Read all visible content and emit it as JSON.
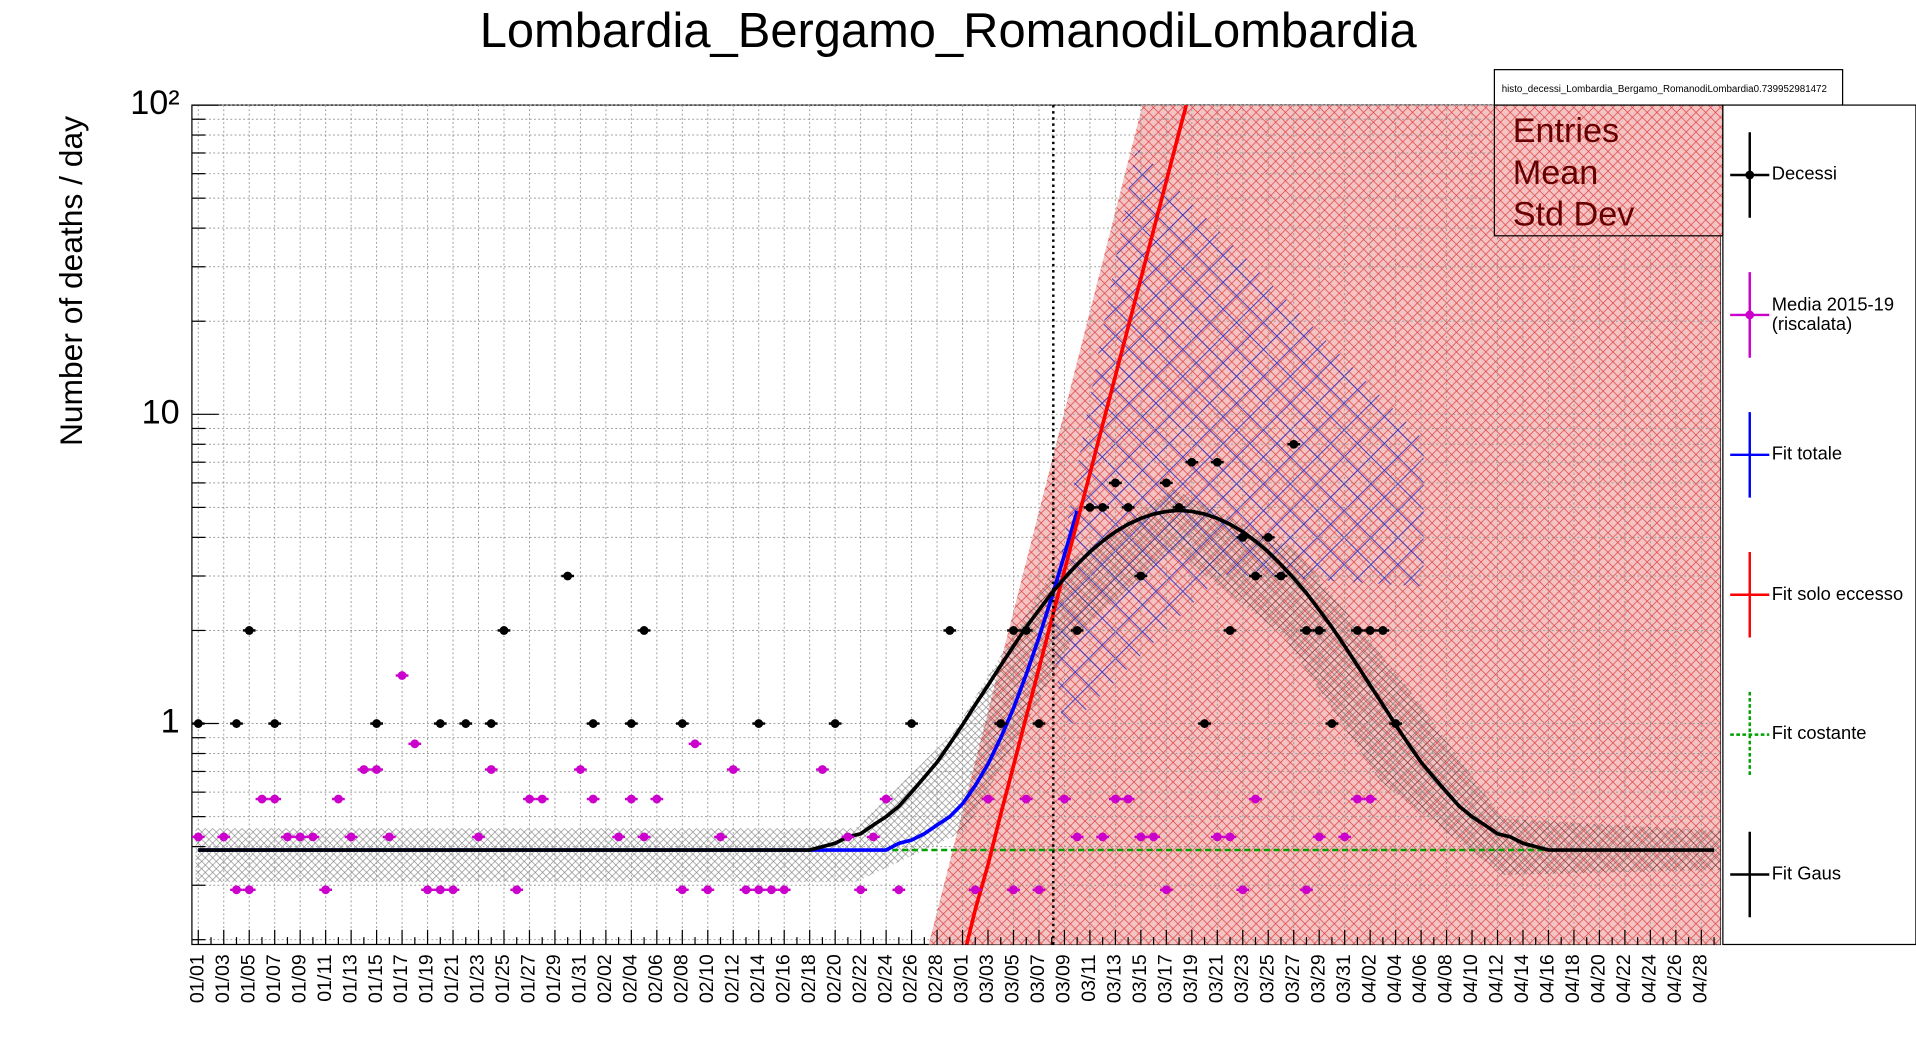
{
  "chart_data": {
    "type": "line",
    "title": "Lombardia_Bergamo_RomanodiLombardia",
    "y_label": "Number of deaths / day",
    "log_y": true,
    "grid": true,
    "ylim": [
      0.193,
      100
    ],
    "yticks": [
      1,
      10,
      {
        "value": 100,
        "label": "10²"
      }
    ],
    "minor_yticks": [
      0.2,
      0.3,
      0.4,
      0.5,
      0.6,
      0.7,
      0.8,
      0.9,
      2,
      3,
      4,
      5,
      6,
      7,
      8,
      9,
      20,
      30,
      40,
      50,
      60,
      70,
      80,
      90
    ],
    "stats_box": {
      "title": "histo_decessi_Lombardia_Bergamo_RomanodiLombardia0.739952981472",
      "rows": [
        "Entries",
        "Mean",
        "Std Dev"
      ]
    },
    "categories": [
      "01/01",
      null,
      "01/03",
      null,
      "01/05",
      null,
      "01/07",
      null,
      "01/09",
      null,
      "01/11",
      null,
      "01/13",
      null,
      "01/15",
      null,
      "01/17",
      null,
      "01/19",
      null,
      "01/21",
      null,
      "01/23",
      null,
      "01/25",
      null,
      "01/27",
      null,
      "01/29",
      null,
      "01/31",
      null,
      "02/02",
      null,
      "02/04",
      null,
      "02/06",
      null,
      "02/08",
      null,
      "02/10",
      null,
      "02/12",
      null,
      "02/14",
      null,
      "02/16",
      null,
      "02/18",
      null,
      "02/20",
      null,
      "02/22",
      null,
      "02/24",
      null,
      "02/26",
      null,
      "02/28",
      null,
      "03/01",
      null,
      "03/03",
      null,
      "03/05",
      null,
      "03/07",
      null,
      "03/09",
      null,
      "03/11",
      null,
      "03/13",
      null,
      "03/15",
      null,
      "03/17",
      null,
      "03/19",
      null,
      "03/21",
      null,
      "03/23",
      null,
      "03/25",
      null,
      "03/27",
      null,
      "03/29",
      null,
      "03/31",
      null,
      "04/02",
      null,
      "04/04",
      null,
      "04/06",
      null,
      "04/08",
      null,
      "04/10",
      null,
      "04/12",
      null,
      "04/14",
      null,
      "04/16",
      null,
      "04/18",
      null,
      "04/20",
      null,
      "04/22",
      null,
      "04/24",
      null,
      "04/26",
      null,
      "04/28",
      null
    ],
    "series": [
      {
        "name": "Decessi",
        "color": "#000000",
        "mark": "points",
        "values": [
          1,
          null,
          null,
          1,
          2,
          null,
          1,
          null,
          null,
          null,
          null,
          null,
          null,
          null,
          1,
          null,
          null,
          null,
          null,
          1,
          null,
          1,
          null,
          1,
          2,
          null,
          null,
          null,
          null,
          3,
          null,
          1,
          null,
          null,
          1,
          2,
          null,
          null,
          1,
          null,
          null,
          null,
          null,
          null,
          1,
          null,
          null,
          null,
          null,
          null,
          1,
          null,
          null,
          null,
          null,
          null,
          1,
          null,
          null,
          2,
          null,
          null,
          null,
          1,
          2,
          2,
          1,
          null,
          null,
          2,
          5,
          5,
          6,
          5,
          3,
          null,
          6,
          5,
          7,
          1,
          7,
          2,
          4,
          3,
          4,
          3,
          8,
          2,
          2,
          1,
          null,
          2,
          2,
          2,
          1,
          null,
          null,
          null,
          null,
          null,
          null,
          null,
          null,
          null,
          null,
          null,
          null,
          null,
          null,
          null,
          null,
          null,
          null,
          null,
          null,
          null,
          null,
          null,
          null,
          null
        ]
      },
      {
        "name": "Media 2015-19 (riscalata)",
        "color": "#cc00cc",
        "mark": "points",
        "values": [
          0.43,
          null,
          0.43,
          0.29,
          0.29,
          0.57,
          0.57,
          0.43,
          0.43,
          0.43,
          0.29,
          0.57,
          0.43,
          0.71,
          0.71,
          0.43,
          1.43,
          0.86,
          0.29,
          0.29,
          0.29,
          null,
          0.43,
          0.71,
          null,
          0.29,
          0.57,
          0.57,
          null,
          null,
          0.71,
          0.57,
          null,
          0.43,
          0.57,
          0.43,
          0.57,
          null,
          0.29,
          0.86,
          0.29,
          0.43,
          0.71,
          0.29,
          0.29,
          0.29,
          0.29,
          null,
          null,
          0.71,
          null,
          0.43,
          0.29,
          0.43,
          0.57,
          0.29,
          null,
          null,
          null,
          null,
          null,
          0.29,
          0.57,
          null,
          0.29,
          0.57,
          0.29,
          null,
          0.57,
          0.43,
          null,
          0.43,
          0.57,
          0.57,
          0.43,
          0.43,
          0.29,
          null,
          null,
          null,
          0.43,
          0.43,
          0.29,
          0.57,
          null,
          null,
          null,
          0.29,
          0.43,
          null,
          0.43,
          0.57,
          0.57,
          null,
          null,
          null,
          null,
          null,
          null,
          null,
          null,
          null,
          null,
          null,
          null,
          null,
          null,
          null,
          null,
          null,
          null,
          null,
          null,
          null,
          null,
          null,
          null,
          null,
          null,
          null
        ]
      },
      {
        "name": "Fit totale",
        "color": "#0000ff",
        "mark": "line",
        "values": [
          0.39,
          0.39,
          0.39,
          0.39,
          0.39,
          0.39,
          0.39,
          0.39,
          0.39,
          0.39,
          0.39,
          0.39,
          0.39,
          0.39,
          0.39,
          0.39,
          0.39,
          0.39,
          0.39,
          0.39,
          0.39,
          0.39,
          0.39,
          0.39,
          0.39,
          0.39,
          0.39,
          0.39,
          0.39,
          0.39,
          0.39,
          0.39,
          0.39,
          0.39,
          0.39,
          0.39,
          0.39,
          0.39,
          0.39,
          0.39,
          0.39,
          0.39,
          0.39,
          0.39,
          0.39,
          0.39,
          0.39,
          0.39,
          0.39,
          0.39,
          0.39,
          0.39,
          0.39,
          0.39,
          0.39,
          0.41,
          0.42,
          0.44,
          0.47,
          0.5,
          0.55,
          0.63,
          0.74,
          0.9,
          1.12,
          1.44,
          1.9,
          2.56,
          3.51,
          4.87,
          null,
          null,
          null,
          null,
          null,
          null,
          null,
          null,
          null,
          null,
          null,
          null,
          null,
          null,
          null,
          null,
          null,
          null,
          null,
          null,
          null,
          null,
          null,
          null,
          null,
          null,
          null,
          null,
          null,
          null,
          null,
          null,
          null,
          null,
          null,
          null,
          null,
          null,
          null,
          null,
          null,
          null,
          null,
          null,
          null,
          null,
          null,
          null,
          null,
          null
        ]
      },
      {
        "name": "Fit solo eccesso",
        "color": "#ff0000",
        "mark": "line",
        "values": [
          null,
          null,
          null,
          null,
          null,
          null,
          null,
          null,
          null,
          null,
          null,
          null,
          null,
          null,
          null,
          null,
          null,
          null,
          null,
          null,
          null,
          null,
          null,
          null,
          null,
          null,
          null,
          null,
          null,
          null,
          null,
          null,
          null,
          null,
          null,
          null,
          null,
          null,
          null,
          null,
          null,
          null,
          null,
          null,
          null,
          null,
          null,
          null,
          null,
          null,
          null,
          null,
          null,
          null,
          null,
          null,
          null,
          null,
          null,
          null,
          0.17,
          0.25,
          0.35,
          0.51,
          0.73,
          1.05,
          1.51,
          2.17,
          3.12,
          4.48,
          6.44,
          9.26,
          13.3,
          19.1,
          27.5,
          39.5,
          56.8,
          81.6,
          117,
          null,
          null,
          null,
          null,
          null,
          null,
          null,
          null,
          null,
          null,
          null,
          null,
          null,
          null,
          null,
          null,
          null,
          null,
          null,
          null,
          null,
          null,
          null,
          null,
          null,
          null,
          null,
          null,
          null,
          null,
          null,
          null,
          null,
          null,
          null,
          null,
          null,
          null,
          null,
          null,
          null
        ]
      },
      {
        "name": "Fit costante",
        "color": "#00a000",
        "mark": "dashed",
        "values": [
          0.39,
          0.39,
          0.39,
          0.39,
          0.39,
          0.39,
          0.39,
          0.39,
          0.39,
          0.39,
          0.39,
          0.39,
          0.39,
          0.39,
          0.39,
          0.39,
          0.39,
          0.39,
          0.39,
          0.39,
          0.39,
          0.39,
          0.39,
          0.39,
          0.39,
          0.39,
          0.39,
          0.39,
          0.39,
          0.39,
          0.39,
          0.39,
          0.39,
          0.39,
          0.39,
          0.39,
          0.39,
          0.39,
          0.39,
          0.39,
          0.39,
          0.39,
          0.39,
          0.39,
          0.39,
          0.39,
          0.39,
          0.39,
          0.39,
          0.39,
          0.39,
          0.39,
          0.39,
          0.39,
          0.39,
          0.39,
          0.39,
          0.39,
          0.39,
          0.39,
          0.39,
          0.39,
          0.39,
          0.39,
          0.39,
          0.39,
          0.39,
          0.39,
          0.39,
          0.39,
          0.39,
          0.39,
          0.39,
          0.39,
          0.39,
          0.39,
          0.39,
          0.39,
          0.39,
          0.39,
          0.39,
          0.39,
          0.39,
          0.39,
          0.39,
          0.39,
          0.39,
          0.39,
          0.39,
          0.39,
          0.39,
          0.39,
          0.39,
          0.39,
          0.39,
          0.39,
          0.39,
          0.39,
          0.39,
          0.39,
          0.39,
          0.39,
          0.39,
          0.39,
          0.39,
          0.39,
          0.39,
          0.39,
          0.39,
          0.39,
          0.39,
          0.39,
          0.39,
          0.39,
          0.39,
          0.39,
          0.39,
          0.39,
          0.39,
          0.39
        ]
      },
      {
        "name": "Fit Gaus",
        "color": "#000000",
        "mark": "line",
        "values": [
          0.39,
          0.39,
          0.39,
          0.39,
          0.39,
          0.39,
          0.39,
          0.39,
          0.39,
          0.39,
          0.39,
          0.39,
          0.39,
          0.39,
          0.39,
          0.39,
          0.39,
          0.39,
          0.39,
          0.39,
          0.39,
          0.39,
          0.39,
          0.39,
          0.39,
          0.39,
          0.39,
          0.39,
          0.39,
          0.39,
          0.39,
          0.39,
          0.39,
          0.39,
          0.39,
          0.39,
          0.39,
          0.39,
          0.39,
          0.39,
          0.39,
          0.39,
          0.39,
          0.39,
          0.39,
          0.39,
          0.39,
          0.39,
          0.39,
          0.4,
          0.41,
          0.43,
          0.44,
          0.47,
          0.5,
          0.54,
          0.6,
          0.67,
          0.75,
          0.86,
          0.99,
          1.15,
          1.33,
          1.54,
          1.78,
          2.05,
          2.33,
          2.64,
          2.95,
          3.27,
          3.59,
          3.89,
          4.17,
          4.41,
          4.61,
          4.76,
          4.85,
          4.89,
          4.85,
          4.76,
          4.61,
          4.41,
          4.17,
          3.89,
          3.59,
          3.27,
          2.95,
          2.64,
          2.33,
          2.05,
          1.78,
          1.54,
          1.33,
          1.15,
          0.99,
          0.86,
          0.75,
          0.67,
          0.6,
          0.54,
          0.5,
          0.47,
          0.44,
          0.43,
          0.41,
          0.4,
          0.39,
          0.39,
          0.39,
          0.39,
          0.39,
          0.39,
          0.39,
          0.39,
          0.39,
          0.39,
          0.39,
          0.39,
          0.39,
          0.39
        ]
      }
    ]
  }
}
